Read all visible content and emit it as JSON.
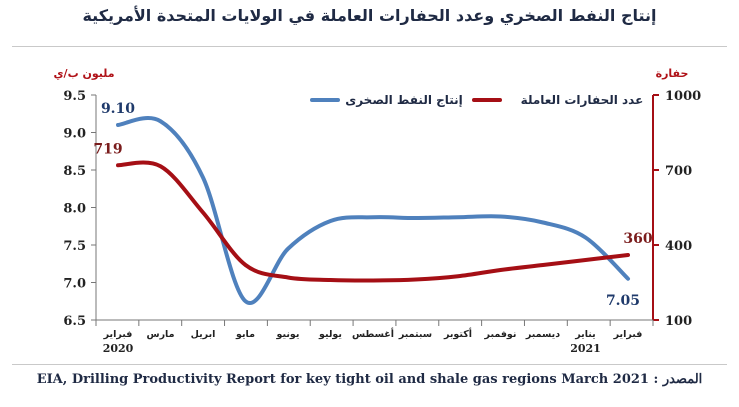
{
  "chart_data": {
    "type": "line",
    "title": "إنتاج النفط الصخري وعدد الحفارات العاملة في الولايات المتحدة الأمريكية",
    "left_axis": {
      "label": "مليون ب/ي",
      "range": [
        6.5,
        9.5
      ],
      "ticks": [
        "9.5",
        "9.0",
        "8.5",
        "8.0",
        "7.5",
        "7.0",
        "6.5"
      ]
    },
    "right_axis": {
      "label": "حفارة",
      "range": [
        100,
        1000
      ],
      "ticks": [
        "1000",
        "700",
        "400",
        "100"
      ]
    },
    "categories": [
      "فبراير",
      "مارس",
      "ابريل",
      "مايو",
      "يونيو",
      "يوليو",
      "أغسطس",
      "سبتمبر",
      "أكتوبر",
      "نوفمبر",
      "ديسمبر",
      "يناير",
      "فبراير"
    ],
    "year_labels": [
      {
        "index": 0,
        "text": "2020"
      },
      {
        "index": 11,
        "text": "2021"
      }
    ],
    "series": [
      {
        "name": "إنتاج النفط الصخرى",
        "axis": "left",
        "color": "#4f81bd",
        "values": [
          9.1,
          9.15,
          8.4,
          6.75,
          7.45,
          7.82,
          7.87,
          7.86,
          7.87,
          7.88,
          7.8,
          7.6,
          7.05
        ]
      },
      {
        "name": "عدد الحفارات العاملة",
        "axis": "right",
        "color": "#a50f15",
        "values": [
          719,
          715,
          530,
          320,
          270,
          260,
          258,
          262,
          275,
          300,
          320,
          340,
          360
        ]
      }
    ],
    "data_labels": [
      {
        "series": 0,
        "index": 0,
        "text": "9.10"
      },
      {
        "series": 0,
        "index": 12,
        "text": "7.05"
      },
      {
        "series": 1,
        "index": 0,
        "text": "719"
      },
      {
        "series": 1,
        "index": 12,
        "text": "360"
      }
    ],
    "legend_position": "top-center"
  },
  "source": "EIA, Drilling Productivity Report for key tight oil and shale gas regions March 2021 : المصدر"
}
